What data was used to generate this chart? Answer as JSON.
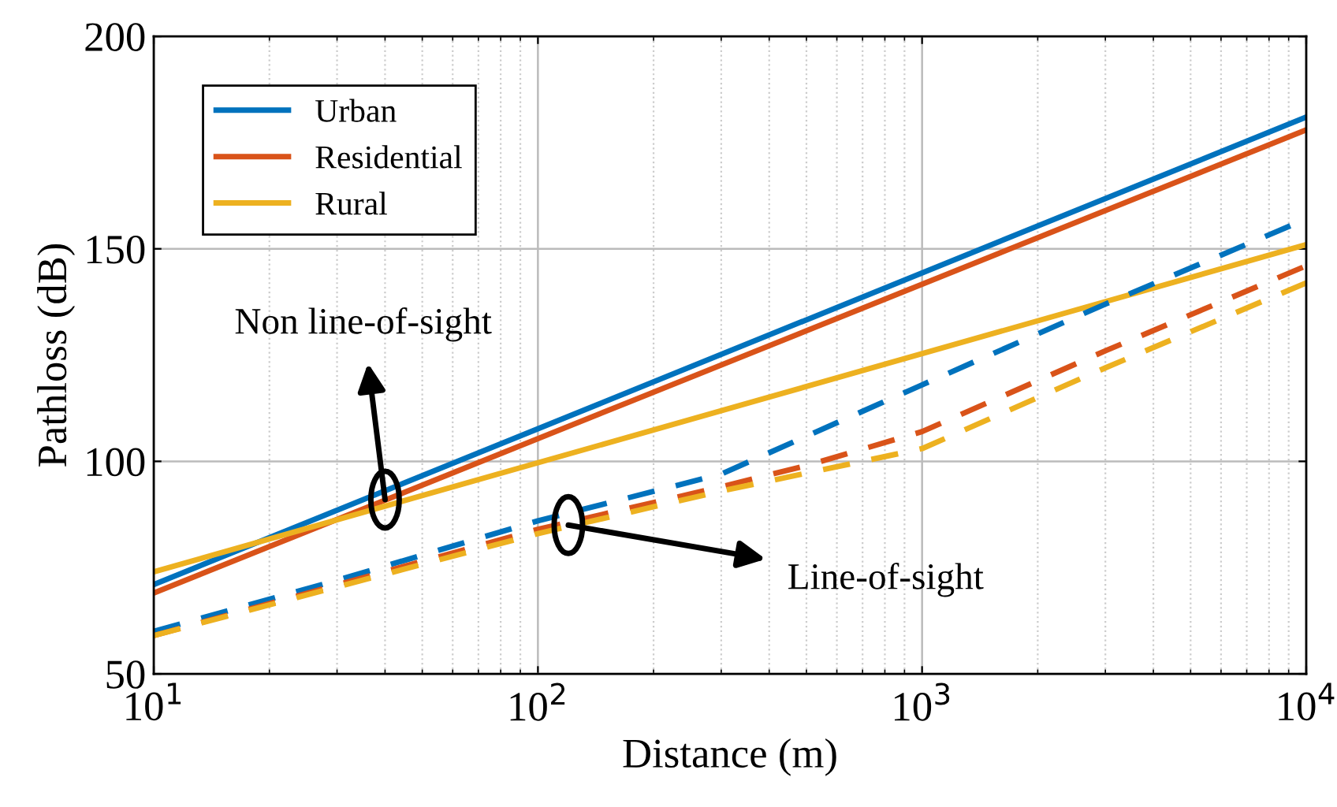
{
  "chart_data": {
    "type": "line",
    "xlabel": "Distance (m)",
    "ylabel": "Pathloss (dB)",
    "log": "x",
    "xlim": [
      10,
      10000
    ],
    "ylim": [
      50,
      200
    ],
    "xticks": [
      {
        "value": 10,
        "label": "10$^{1}$"
      },
      {
        "value": 100,
        "label": "10$^{2}$"
      },
      {
        "value": 1000,
        "label": "10$^{3}$"
      },
      {
        "value": 10000,
        "label": "10$^{4}$"
      }
    ],
    "yticks": [
      50,
      100,
      150,
      200
    ],
    "grid": true,
    "legend": "top left",
    "series": [
      {
        "name": "Urban",
        "color": "#0072bd",
        "line_style": "solid",
        "x": [
          10,
          10000
        ],
        "values": [
          71,
          181
        ]
      },
      {
        "name": "Residential",
        "color": "#d95319",
        "line_style": "solid",
        "x": [
          10,
          10000
        ],
        "values": [
          69,
          178
        ]
      },
      {
        "name": "Rural",
        "color": "#edb120",
        "line_style": "solid",
        "x": [
          10,
          10000
        ],
        "values": [
          74,
          151
        ]
      },
      {
        "color": "#0072bd",
        "line_style": "dashed",
        "x": [
          10,
          30,
          100,
          300,
          1000,
          3000,
          10000
        ],
        "values": [
          60,
          72,
          86,
          97,
          118,
          137,
          157
        ]
      },
      {
        "color": "#d95319",
        "line_style": "dashed",
        "x": [
          10,
          100,
          300,
          500,
          1000,
          3000,
          10000
        ],
        "values": [
          59,
          84,
          94,
          99,
          107,
          126,
          146
        ]
      },
      {
        "color": "#edb120",
        "line_style": "dashed",
        "x": [
          10,
          100,
          300,
          700,
          1000,
          3000,
          10000
        ],
        "values": [
          59,
          83,
          93,
          100,
          103,
          122,
          142
        ]
      }
    ],
    "annotations": [
      {
        "text": "Non line-of-sight",
        "x": 40,
        "y": 91
      },
      {
        "text": "Line-of-sight",
        "x": 120,
        "y": 85
      }
    ]
  }
}
